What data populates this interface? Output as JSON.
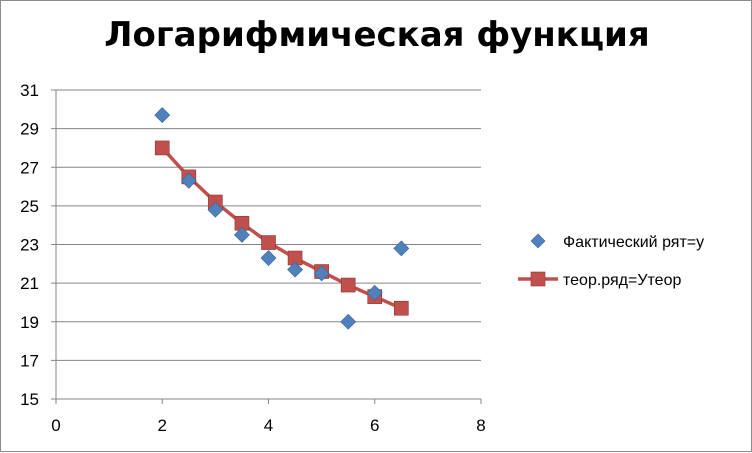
{
  "chart_data": {
    "type": "scatter",
    "title": "Логарифмическая функция",
    "xlabel": "",
    "ylabel": "",
    "xlim": [
      0,
      8
    ],
    "ylim": [
      15,
      31
    ],
    "xticks": [
      0,
      2,
      4,
      6,
      8
    ],
    "yticks": [
      15,
      17,
      19,
      21,
      23,
      25,
      27,
      29,
      31
    ],
    "grid": "horizontal",
    "legend_position": "right",
    "series": [
      {
        "name": "Фактический рят=y",
        "style": "markers",
        "marker": "diamond",
        "color": "#4f81bd",
        "x": [
          2,
          2.5,
          3,
          3.5,
          4,
          4.5,
          5,
          5.5,
          6,
          6.5
        ],
        "y": [
          29.7,
          26.3,
          24.8,
          23.5,
          22.3,
          21.7,
          21.5,
          19.0,
          20.5,
          22.8
        ]
      },
      {
        "name": "теор.ряд=Утеор",
        "style": "line+markers",
        "marker": "square",
        "color": "#c0504d",
        "x": [
          2,
          2.5,
          3,
          3.5,
          4,
          4.5,
          5,
          5.5,
          6,
          6.5
        ],
        "y": [
          28.0,
          26.5,
          25.2,
          24.1,
          23.1,
          22.3,
          21.6,
          20.9,
          20.3,
          19.7
        ]
      }
    ]
  }
}
